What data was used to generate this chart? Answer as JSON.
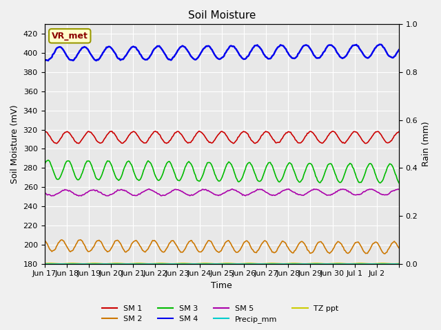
{
  "title": "Soil Moisture",
  "xlabel": "Time",
  "ylabel_left": "Soil Moisture (mV)",
  "ylabel_right": "Rain (mm)",
  "background_color": "#f0f0f0",
  "plot_bg_color": "#e8e8e8",
  "ylim_left": [
    180,
    430
  ],
  "ylim_right": [
    0.0,
    1.0
  ],
  "yticks_left": [
    180,
    200,
    220,
    240,
    260,
    280,
    300,
    320,
    340,
    360,
    380,
    400,
    420
  ],
  "yticks_right": [
    0.0,
    0.2,
    0.4,
    0.6,
    0.8,
    1.0
  ],
  "series": {
    "SM1": {
      "color": "#cc0000",
      "base": 312,
      "amplitude": 6,
      "freq_factor": 1.0,
      "trend": 0.0
    },
    "SM2": {
      "color": "#cc7700",
      "base": 199,
      "amplitude": 6,
      "freq_factor": 1.2,
      "trend": -0.15
    },
    "SM3": {
      "color": "#00bb00",
      "base": 278,
      "amplitude": 10,
      "freq_factor": 1.1,
      "trend": -0.25
    },
    "SM4": {
      "color": "#0000ee",
      "base": 399,
      "amplitude": 7,
      "freq_factor": 0.9,
      "trend": 0.2
    },
    "SM5": {
      "color": "#aa00aa",
      "base": 254,
      "amplitude": 3,
      "freq_factor": 0.8,
      "trend": 0.05
    },
    "Precip_mm": {
      "color": "#00cccc",
      "base": 0,
      "amplitude": 0,
      "freq_factor": 1.0,
      "trend": 0.0
    },
    "TZ_ppt": {
      "color": "#cccc00",
      "base": 180,
      "amplitude": 0.3,
      "freq_factor": 1.0,
      "trend": 0.0
    }
  },
  "legend_labels": [
    "SM 1",
    "SM 2",
    "SM 3",
    "SM 4",
    "SM 5",
    "Precip_mm",
    "TZ ppt"
  ],
  "legend_colors": [
    "#cc0000",
    "#cc7700",
    "#00bb00",
    "#0000ee",
    "#aa00aa",
    "#00cccc",
    "#cccc00"
  ],
  "xtick_labels": [
    "Jun 17",
    "Jun 18",
    "Jun 19",
    "Jun 20",
    "Jun 21",
    "Jun 22",
    "Jun 23",
    "Jun 24",
    "Jun 25",
    "Jun 26",
    "Jun 27",
    "Jun 28",
    "Jun 29",
    "Jun 30",
    "Jul 1",
    "Jul 2",
    ""
  ],
  "station_label": "VR_met",
  "station_label_color": "#8b0000",
  "station_box_color": "#ffffcc",
  "station_box_edge": "#999900"
}
